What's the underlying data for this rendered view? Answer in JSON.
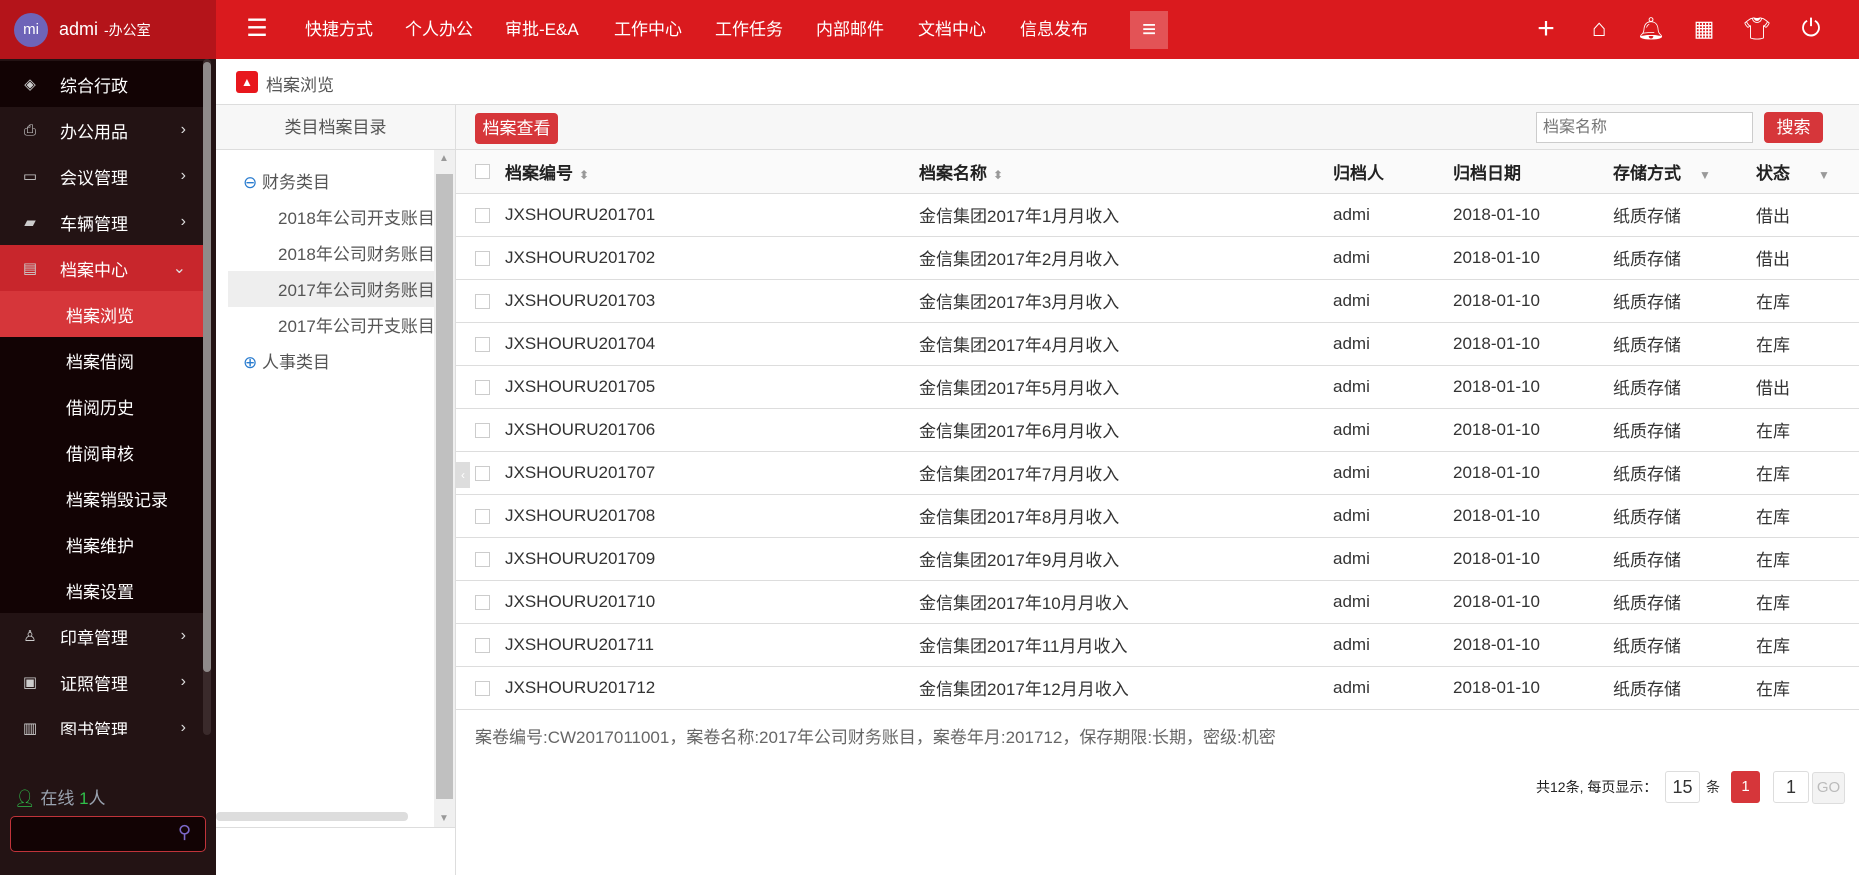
{
  "user": {
    "avatar": "mi",
    "name": "admi",
    "org": "-办公室"
  },
  "sidebar": {
    "items": [
      {
        "label": "综合行政",
        "icon": "layers-icon",
        "glyph": "◈",
        "chevron": ""
      },
      {
        "label": "办公用品",
        "icon": "printer-icon",
        "glyph": "⎙",
        "chevron": "›"
      },
      {
        "label": "会议管理",
        "icon": "meeting-icon",
        "glyph": "▭",
        "chevron": "›"
      },
      {
        "label": "车辆管理",
        "icon": "car-icon",
        "glyph": "▰",
        "chevron": "›"
      },
      {
        "label": "档案中心",
        "icon": "archive-icon",
        "glyph": "▤",
        "chevron": "⌄"
      }
    ],
    "subitems": [
      "档案浏览",
      "档案借阅",
      "借阅历史",
      "借阅审核",
      "档案销毁记录",
      "档案维护",
      "档案设置"
    ],
    "items2": [
      {
        "label": "印章管理",
        "icon": "stamp-icon",
        "glyph": "♙",
        "chevron": "›"
      },
      {
        "label": "证照管理",
        "icon": "id-card-icon",
        "glyph": "▣",
        "chevron": "›"
      },
      {
        "label": "图书管理",
        "icon": "book-icon",
        "glyph": "▥",
        "chevron": "›"
      }
    ],
    "online_label": "在线",
    "online_count": "1",
    "online_unit": "人",
    "search_value": ""
  },
  "topnav": [
    "快捷方式",
    "个人办公",
    "审批-E&A",
    "工作中心",
    "工作任务",
    "内部邮件",
    "文档中心",
    "信息发布"
  ],
  "colors": {
    "topbar": "#da1a1e",
    "userbar": "#b4141a",
    "sidebar": "#231314",
    "accent": "#d6363a"
  },
  "breadcrumb": "档案浏览",
  "tree": {
    "header": "类目档案目录",
    "groups": [
      {
        "label": "财务类目",
        "expanded": true,
        "children": [
          "2018年公司开支账目",
          "2018年公司财务账目",
          "2017年公司财务账目",
          "2017年公司开支账目"
        ]
      },
      {
        "label": "人事类目",
        "expanded": false
      }
    ],
    "selected": "2017年公司财务账目"
  },
  "toolbar": {
    "view_button": "档案查看",
    "search_placeholder": "档案名称",
    "search_button": "搜索"
  },
  "table": {
    "headers": [
      "档案编号",
      "档案名称",
      "归档人",
      "归档日期",
      "存储方式",
      "状态"
    ],
    "rows": [
      [
        "JXSHOURU201701",
        "金信集团2017年1月月收入",
        "admi",
        "2018-01-10",
        "纸质存储",
        "借出"
      ],
      [
        "JXSHOURU201702",
        "金信集团2017年2月月收入",
        "admi",
        "2018-01-10",
        "纸质存储",
        "借出"
      ],
      [
        "JXSHOURU201703",
        "金信集团2017年3月月收入",
        "admi",
        "2018-01-10",
        "纸质存储",
        "在库"
      ],
      [
        "JXSHOURU201704",
        "金信集团2017年4月月收入",
        "admi",
        "2018-01-10",
        "纸质存储",
        "在库"
      ],
      [
        "JXSHOURU201705",
        "金信集团2017年5月月收入",
        "admi",
        "2018-01-10",
        "纸质存储",
        "借出"
      ],
      [
        "JXSHOURU201706",
        "金信集团2017年6月月收入",
        "admi",
        "2018-01-10",
        "纸质存储",
        "在库"
      ],
      [
        "JXSHOURU201707",
        "金信集团2017年7月月收入",
        "admi",
        "2018-01-10",
        "纸质存储",
        "在库"
      ],
      [
        "JXSHOURU201708",
        "金信集团2017年8月月收入",
        "admi",
        "2018-01-10",
        "纸质存储",
        "在库"
      ],
      [
        "JXSHOURU201709",
        "金信集团2017年9月月收入",
        "admi",
        "2018-01-10",
        "纸质存储",
        "在库"
      ],
      [
        "JXSHOURU201710",
        "金信集团2017年10月月收入",
        "admi",
        "2018-01-10",
        "纸质存储",
        "在库"
      ],
      [
        "JXSHOURU201711",
        "金信集团2017年11月月收入",
        "admi",
        "2018-01-10",
        "纸质存储",
        "在库"
      ],
      [
        "JXSHOURU201712",
        "金信集团2017年12月月收入",
        "admi",
        "2018-01-10",
        "纸质存储",
        "在库"
      ]
    ]
  },
  "summary": "案卷编号:CW2017011001，案卷名称:2017年公司财务账目，案卷年月:201712，保存期限:长期，密级:机密",
  "pagination": {
    "total_text": "共12条, 每页显示：",
    "page_size": "15",
    "unit": "条",
    "current": "1",
    "goto_value": "1",
    "go": "GO"
  }
}
